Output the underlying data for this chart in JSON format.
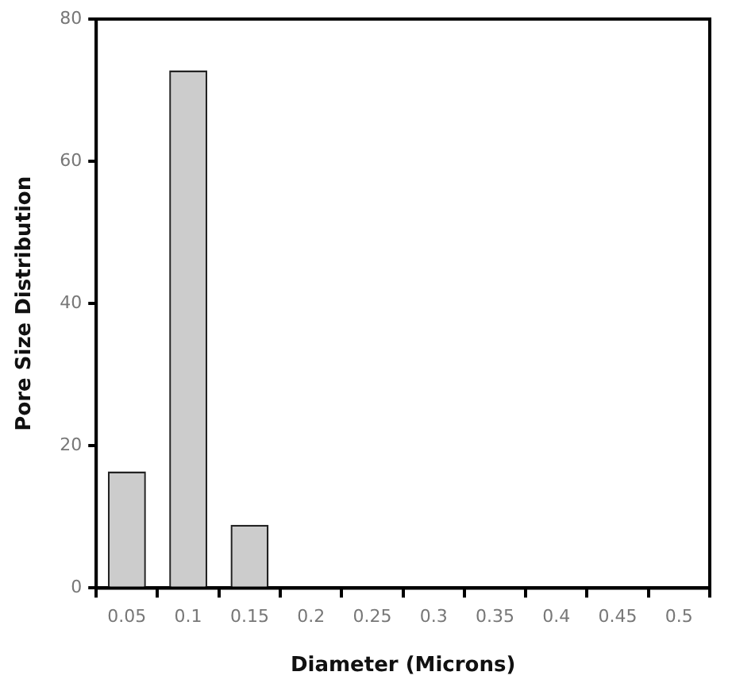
{
  "chart_data": {
    "type": "bar",
    "xlabel": "Diameter (Microns)",
    "ylabel": "Pore Size Distribution",
    "categories": [
      "0.05",
      "0.1",
      "0.15",
      "0.2",
      "0.25",
      "0.3",
      "0.35",
      "0.4",
      "0.45",
      "0.5"
    ],
    "values": [
      16.4,
      72.8,
      8.9,
      0,
      0,
      0,
      0,
      0,
      0,
      0
    ],
    "color": "#cccccc",
    "ylim": [
      0,
      80
    ],
    "yticks": [
      0,
      20,
      40,
      60,
      80
    ],
    "grid": false,
    "legend": false
  }
}
